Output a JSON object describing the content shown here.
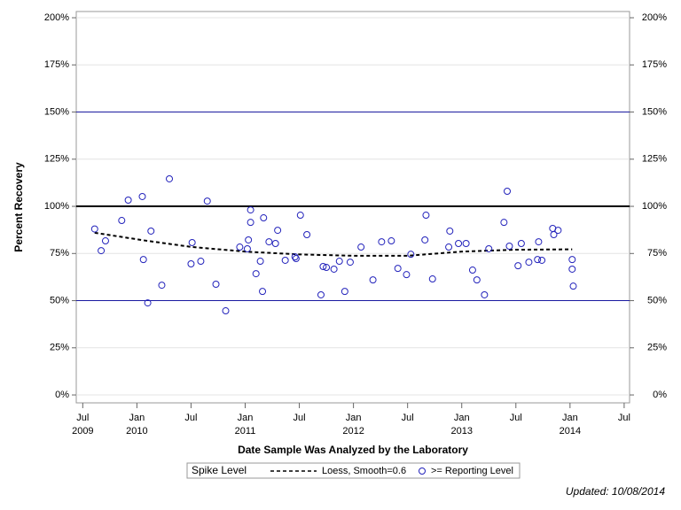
{
  "chart_data": {
    "type": "scatter",
    "x_label": "Date Sample Was Analyzed by the Laboratory",
    "y_label": "Percent Recovery",
    "footer": "Updated: 10/08/2014",
    "legend_title": "Spike Level",
    "legend": "bottom",
    "grid": true,
    "xlim": [
      2009.44,
      2014.55
    ],
    "ylim": [
      -4.2,
      203.3
    ],
    "xticks": [
      {
        "value": 2009.5,
        "label": [
          "Jul",
          "2009"
        ]
      },
      {
        "value": 2010.0,
        "label": [
          "Jan",
          "2010"
        ]
      },
      {
        "value": 2010.5,
        "label": [
          "Jul"
        ]
      },
      {
        "value": 2011.0,
        "label": [
          "Jan",
          "2011"
        ]
      },
      {
        "value": 2011.5,
        "label": [
          "Jul"
        ]
      },
      {
        "value": 2012.0,
        "label": [
          "Jan",
          "2012"
        ]
      },
      {
        "value": 2012.5,
        "label": [
          "Jul"
        ]
      },
      {
        "value": 2013.0,
        "label": [
          "Jan",
          "2013"
        ]
      },
      {
        "value": 2013.5,
        "label": [
          "Jul"
        ]
      },
      {
        "value": 2014.0,
        "label": [
          "Jan",
          "2014"
        ]
      },
      {
        "value": 2014.5,
        "label": [
          "Jul"
        ]
      }
    ],
    "yticks": [
      {
        "value": 0,
        "label": "0%"
      },
      {
        "value": 25,
        "label": "25%"
      },
      {
        "value": 50,
        "label": "50%"
      },
      {
        "value": 75,
        "label": "75%"
      },
      {
        "value": 100,
        "label": "100%"
      },
      {
        "value": 125,
        "label": "125%"
      },
      {
        "value": 150,
        "label": "150%"
      },
      {
        "value": 175,
        "label": "175%"
      },
      {
        "value": 200,
        "label": "200%"
      }
    ],
    "reference_lines": [
      {
        "value": 50,
        "color": "#1a1aa0",
        "width": 1
      },
      {
        "value": 100,
        "color": "#000000",
        "width": 2
      },
      {
        "value": 150,
        "color": "#1a1aa0",
        "width": 1
      }
    ],
    "series": [
      {
        "name": "Loess, Smooth=0.6",
        "color": "#000000",
        "mark": "dashed-line",
        "x": [
          2009.61,
          2010.06,
          2010.5,
          2011.0,
          2011.5,
          2012.0,
          2012.5,
          2013.0,
          2013.5,
          2014.02
        ],
        "values": [
          86,
          82,
          78.5,
          76,
          74.5,
          73.8,
          73.8,
          76,
          77,
          77.2
        ]
      },
      {
        "name": ">= Reporting Level",
        "color": "#2222bb",
        "mark": "circle",
        "x": [
          2009.61,
          2009.67,
          2009.71,
          2009.86,
          2009.92,
          2010.05,
          2010.06,
          2010.1,
          2010.13,
          2010.23,
          2010.3,
          2010.5,
          2010.51,
          2010.59,
          2010.65,
          2010.73,
          2010.82,
          2010.95,
          2011.02,
          2011.03,
          2011.05,
          2011.05,
          2011.1,
          2011.14,
          2011.16,
          2011.17,
          2011.22,
          2011.28,
          2011.3,
          2011.37,
          2011.46,
          2011.47,
          2011.51,
          2011.57,
          2011.7,
          2011.72,
          2011.75,
          2011.82,
          2011.87,
          2011.92,
          2011.97,
          2012.07,
          2012.18,
          2012.26,
          2012.35,
          2012.41,
          2012.49,
          2012.53,
          2012.66,
          2012.67,
          2012.73,
          2012.88,
          2012.89,
          2012.97,
          2013.04,
          2013.1,
          2013.14,
          2013.21,
          2013.25,
          2013.39,
          2013.42,
          2013.44,
          2013.52,
          2013.55,
          2013.62,
          2013.7,
          2013.71,
          2013.74,
          2013.84,
          2013.85,
          2013.89,
          2014.02,
          2014.02,
          2014.03
        ],
        "values": [
          88,
          76.5,
          81.7,
          92.5,
          103.3,
          105.2,
          71.8,
          48.8,
          86.9,
          58.2,
          114.6,
          69.5,
          80.8,
          70.9,
          102.8,
          58.7,
          44.6,
          78.4,
          77.5,
          82.2,
          91.5,
          98.1,
          64.3,
          70.9,
          54.9,
          93.9,
          81.2,
          80.3,
          87.3,
          71.4,
          73.2,
          72.3,
          95.3,
          85,
          53.1,
          68.1,
          67.6,
          66.7,
          70.9,
          54.9,
          70.4,
          78.4,
          61,
          81.2,
          81.7,
          67.1,
          63.8,
          74.6,
          82.2,
          95.3,
          61.5,
          78.4,
          86.9,
          80.3,
          80.3,
          66.2,
          61,
          53.1,
          77.5,
          91.5,
          108,
          78.9,
          68.5,
          80.3,
          70.4,
          71.8,
          81.2,
          71.4,
          88.3,
          85,
          87.3,
          71.8,
          66.7,
          57.7
        ]
      }
    ]
  }
}
